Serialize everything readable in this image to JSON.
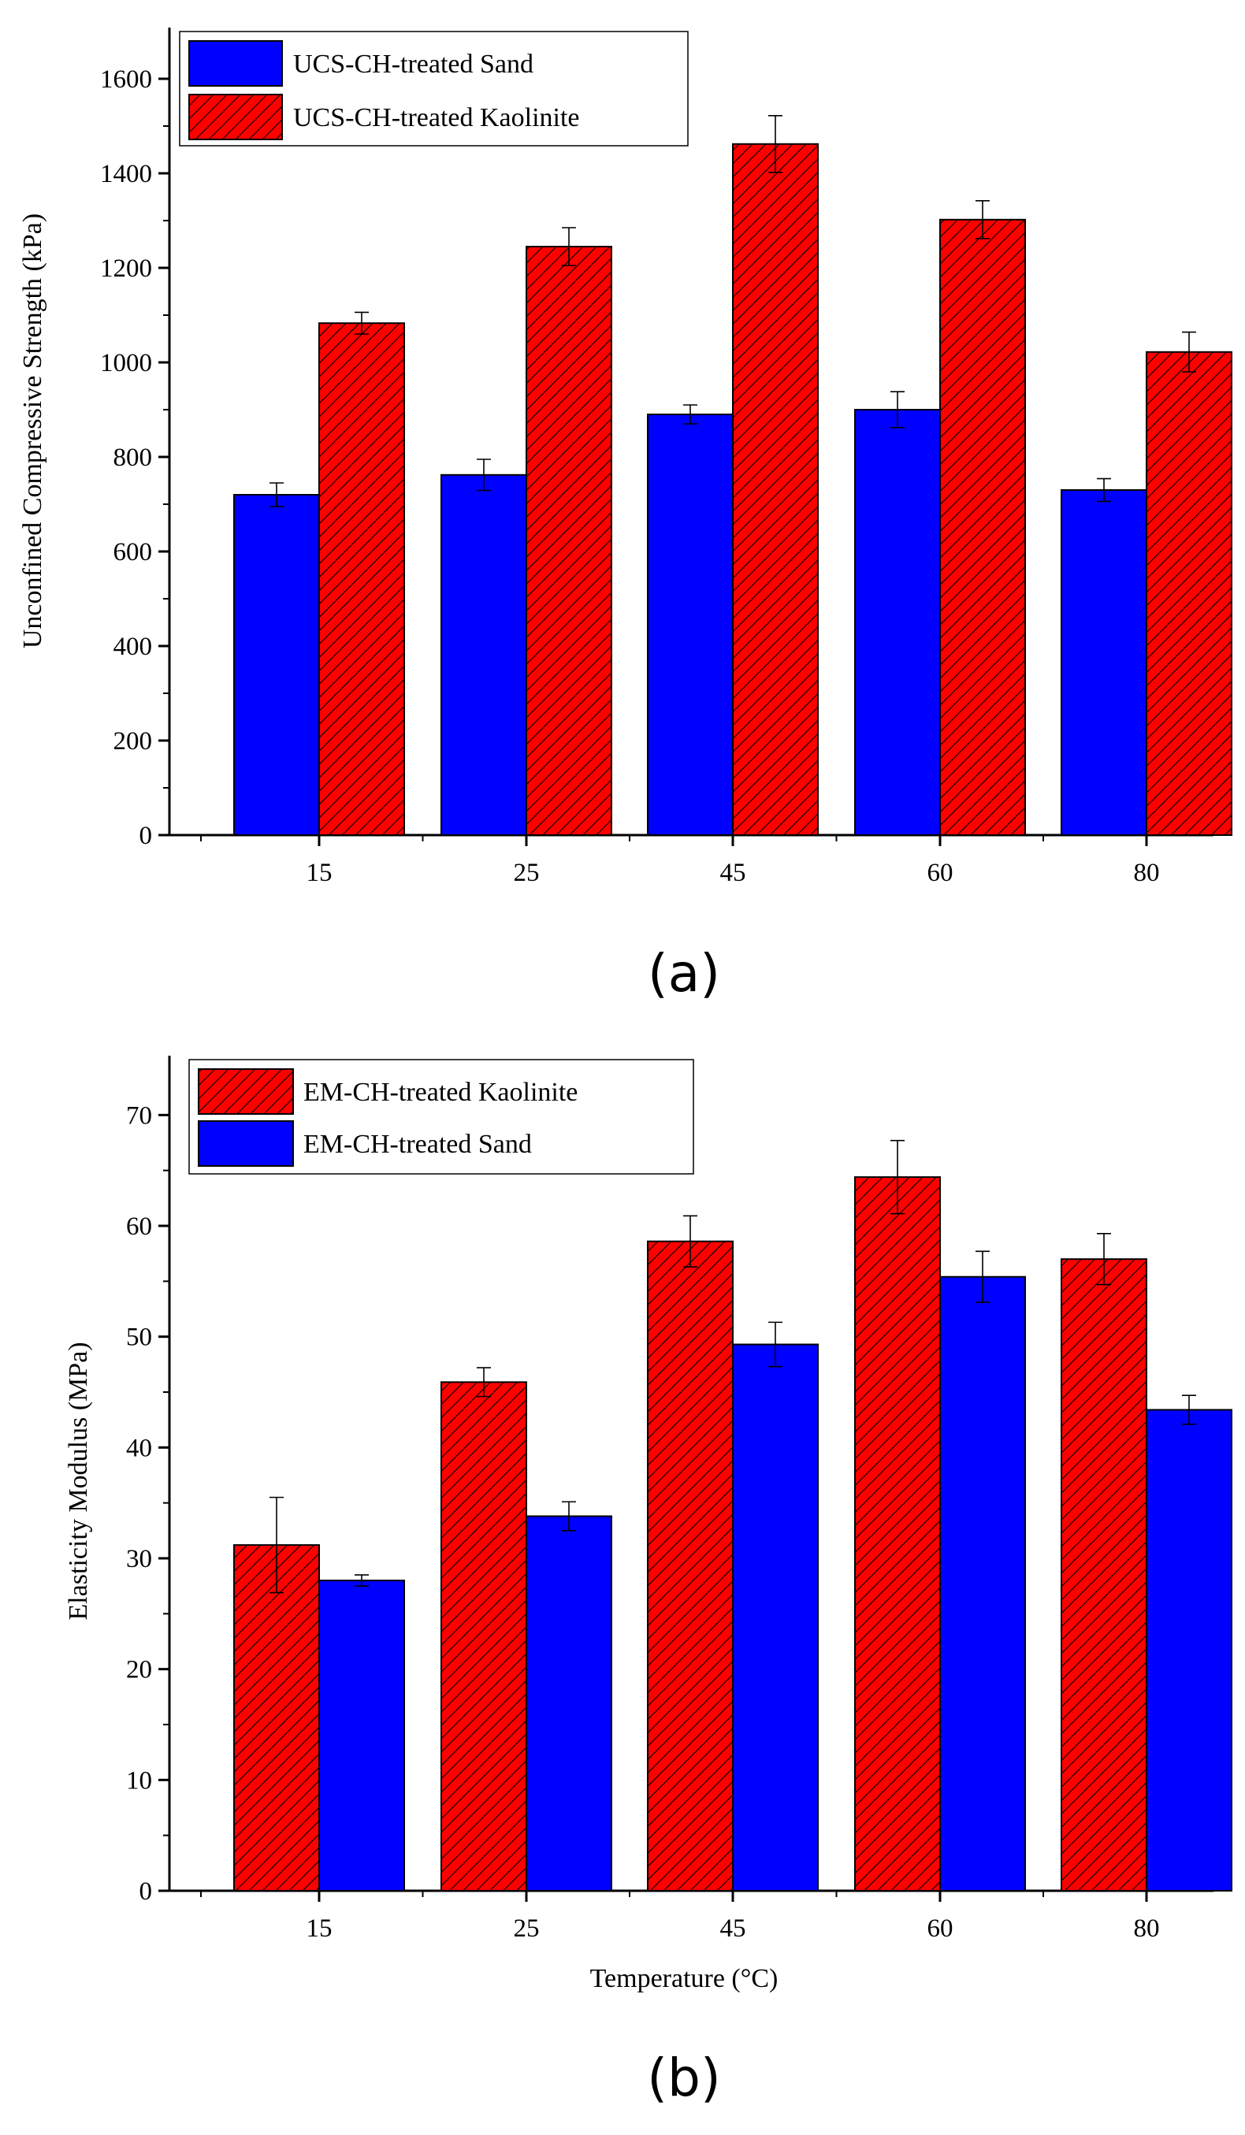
{
  "colors": {
    "sand": "#0000ff",
    "kaolinite": "#ff0000",
    "hatch": "#000000",
    "axis": "#000000"
  },
  "chart_data": [
    {
      "type": "bar",
      "panel_label": "(a)",
      "categories": [
        "15",
        "25",
        "45",
        "60",
        "80"
      ],
      "xlabel": "",
      "ylabel": "Unconfined  Compressive Strength (kPa)",
      "ylim": [
        0,
        1700
      ],
      "yticks": [
        0,
        200,
        400,
        600,
        800,
        1000,
        1200,
        1400,
        1600
      ],
      "legend_position": "top-left",
      "series": [
        {
          "name": "UCS-CH-treated Sand",
          "key": "sand",
          "values": [
            720,
            762,
            890,
            900,
            730
          ],
          "errors": [
            25,
            33,
            20,
            38,
            24
          ]
        },
        {
          "name": "UCS-CH-treated Kaolinite",
          "key": "kaolinite",
          "values": [
            1083,
            1245,
            1462,
            1302,
            1022
          ],
          "errors": [
            23,
            40,
            60,
            40,
            42
          ]
        }
      ]
    },
    {
      "type": "bar",
      "panel_label": "(b)",
      "categories": [
        "15",
        "25",
        "45",
        "60",
        "80"
      ],
      "xlabel": "Temperature (°C)",
      "ylabel": "Elasticity Modulus (MPa)",
      "ylim": [
        0,
        75
      ],
      "yticks": [
        0,
        10,
        20,
        30,
        40,
        50,
        60,
        70
      ],
      "legend_position": "top-left",
      "series": [
        {
          "name": "EM-CH-treated Kaolinite",
          "key": "kaolinite",
          "values": [
            31.2,
            45.9,
            58.6,
            64.4,
            57.0
          ],
          "errors": [
            4.3,
            1.3,
            2.3,
            3.3,
            2.3
          ]
        },
        {
          "name": "EM-CH-treated Sand",
          "key": "sand",
          "values": [
            28.0,
            33.8,
            49.3,
            55.4,
            43.4
          ],
          "errors": [
            0.5,
            1.3,
            2.0,
            2.3,
            1.3
          ]
        }
      ]
    }
  ]
}
